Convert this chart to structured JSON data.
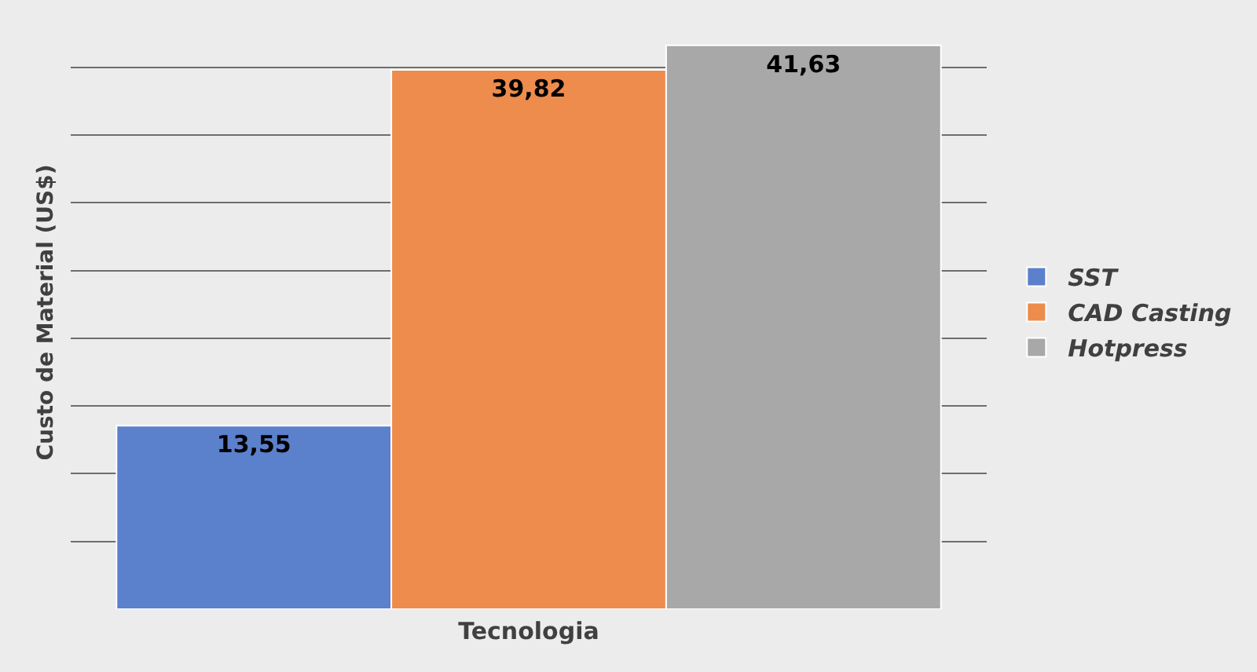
{
  "chart_data": {
    "type": "bar",
    "xlabel": "Tecnologia",
    "ylabel": "Custo de Material (US$)",
    "categories": [
      null
    ],
    "series": [
      {
        "name": "SST",
        "color": "#5b80cc",
        "values": [
          13.55
        ],
        "value_labels": [
          "13,55"
        ]
      },
      {
        "name": "CAD Casting",
        "color": "#ed8c4c",
        "values": [
          39.82
        ],
        "value_labels": [
          "39,82"
        ]
      },
      {
        "name": "Hotpress",
        "color": "#a8a8a8",
        "values": [
          41.63
        ],
        "value_labels": [
          "41,63"
        ]
      }
    ],
    "grid": "y",
    "legend": "right",
    "tick_labels": false
  }
}
